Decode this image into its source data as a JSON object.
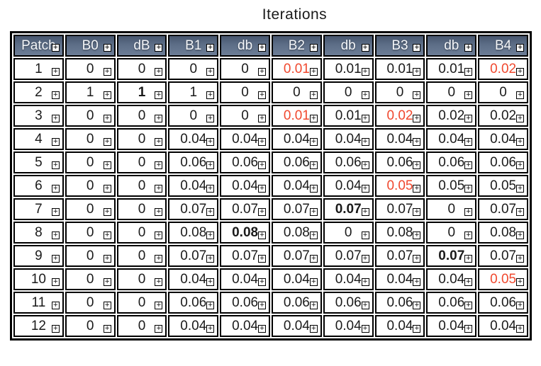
{
  "title": "Iterations",
  "colors": {
    "header_bg_dark": "#47566e",
    "header_bg_mid": "#5d6e87",
    "header_bg_light": "#6c7d96",
    "highlight_red": "#f0482e"
  },
  "expand_icon_glyph": "+",
  "table": {
    "columns": [
      "Patch",
      "B0",
      "dB",
      "B1",
      "db",
      "B2",
      "db",
      "B3",
      "db",
      "B4"
    ],
    "rows": [
      {
        "cells": [
          "1",
          "0",
          "0",
          "0",
          "0",
          "0.01",
          "0.01",
          "0.01",
          "0.01",
          "0.02"
        ],
        "red": [
          5,
          9
        ],
        "bold": []
      },
      {
        "cells": [
          "2",
          "1",
          "1",
          "1",
          "0",
          "0",
          "0",
          "0",
          "0",
          "0"
        ],
        "red": [],
        "bold": [
          2
        ]
      },
      {
        "cells": [
          "3",
          "0",
          "0",
          "0",
          "0",
          "0.01",
          "0.01",
          "0.02",
          "0.02",
          "0.02"
        ],
        "red": [
          5,
          7
        ],
        "bold": []
      },
      {
        "cells": [
          "4",
          "0",
          "0",
          "0.04",
          "0.04",
          "0.04",
          "0.04",
          "0.04",
          "0.04",
          "0.04"
        ],
        "red": [],
        "bold": []
      },
      {
        "cells": [
          "5",
          "0",
          "0",
          "0.06",
          "0.06",
          "0.06",
          "0.06",
          "0.06",
          "0.06",
          "0.06"
        ],
        "red": [],
        "bold": []
      },
      {
        "cells": [
          "6",
          "0",
          "0",
          "0.04",
          "0.04",
          "0.04",
          "0.04",
          "0.05",
          "0.05",
          "0.05"
        ],
        "red": [
          7
        ],
        "bold": []
      },
      {
        "cells": [
          "7",
          "0",
          "0",
          "0.07",
          "0.07",
          "0.07",
          "0.07",
          "0.07",
          "0",
          "0.07"
        ],
        "red": [],
        "bold": [
          6
        ]
      },
      {
        "cells": [
          "8",
          "0",
          "0",
          "0.08",
          "0.08",
          "0.08",
          "0",
          "0.08",
          "0",
          "0.08"
        ],
        "red": [],
        "bold": [
          4
        ]
      },
      {
        "cells": [
          "9",
          "0",
          "0",
          "0.07",
          "0.07",
          "0.07",
          "0.07",
          "0.07",
          "0.07",
          "0.07"
        ],
        "red": [],
        "bold": [
          8
        ]
      },
      {
        "cells": [
          "10",
          "0",
          "0",
          "0.04",
          "0.04",
          "0.04",
          "0.04",
          "0.04",
          "0.04",
          "0.05"
        ],
        "red": [
          9
        ],
        "bold": []
      },
      {
        "cells": [
          "11",
          "0",
          "0",
          "0.06",
          "0.06",
          "0.06",
          "0.06",
          "0.06",
          "0.06",
          "0.06"
        ],
        "red": [],
        "bold": []
      },
      {
        "cells": [
          "12",
          "0",
          "0",
          "0.04",
          "0.04",
          "0.04",
          "0.04",
          "0.04",
          "0.04",
          "0.04"
        ],
        "red": [],
        "bold": []
      }
    ]
  }
}
